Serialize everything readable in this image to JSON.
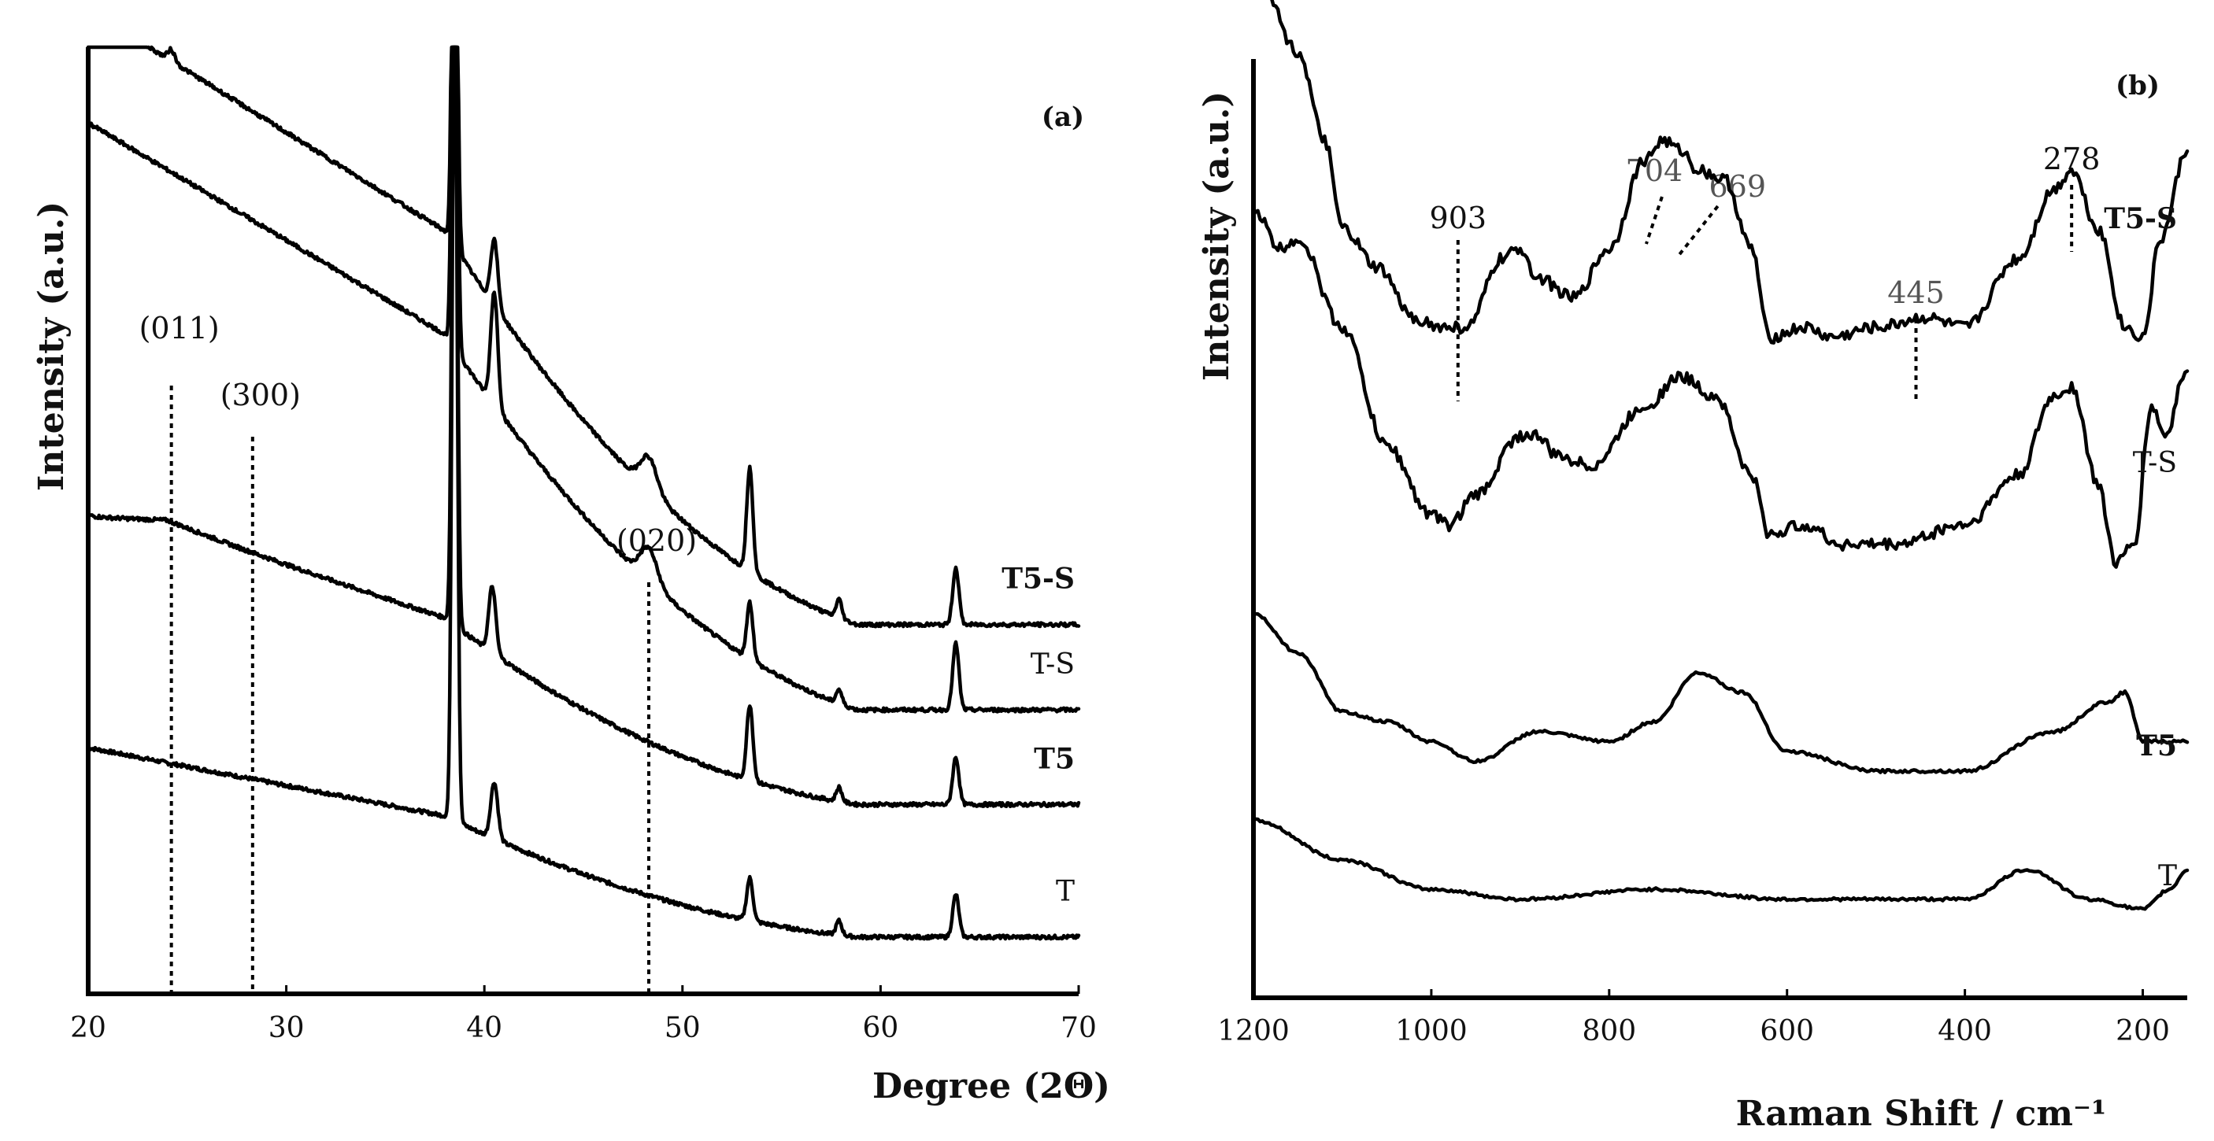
{
  "chart_data": [
    {
      "type": "line",
      "panel": "(a)",
      "xlabel": "Degree (2Θ)",
      "ylabel": "Intensity (a.u.)",
      "xlim": [
        20,
        70
      ],
      "xticks": [
        "20",
        "30",
        "40",
        "50",
        "60",
        "70"
      ],
      "yticks_shown": false,
      "series": [
        {
          "name": "T",
          "bold": false,
          "baseline": 0.06,
          "bg_start": 0.2,
          "bg_end": 0.03,
          "bg_shape": "linear",
          "peaks": [
            [
              38.5,
              0.88,
              0.18
            ],
            [
              40.5,
              0.06,
              0.25
            ],
            [
              53.4,
              0.045,
              0.22
            ],
            [
              57.9,
              0.015,
              0.2
            ],
            [
              63.8,
              0.045,
              0.22
            ]
          ],
          "humps": []
        },
        {
          "name": "T5",
          "bold": true,
          "baseline": 0.2,
          "bg_start": 0.34,
          "bg_end": 0.0,
          "bg_shape": "curved",
          "peaks": [
            [
              38.5,
              0.75,
              0.18
            ],
            [
              40.4,
              0.07,
              0.25
            ],
            [
              53.4,
              0.08,
              0.22
            ],
            [
              57.9,
              0.015,
              0.2
            ],
            [
              63.8,
              0.05,
              0.22
            ]
          ],
          "humps": []
        },
        {
          "name": "T-S",
          "bold": false,
          "baseline": 0.3,
          "bg_start": 0.62,
          "bg_end": 0.0,
          "bg_shape": "linear",
          "peaks": [
            [
              38.5,
              0.62,
              0.18
            ],
            [
              40.5,
              0.12,
              0.25
            ],
            [
              53.4,
              0.06,
              0.22
            ],
            [
              57.9,
              0.015,
              0.2
            ],
            [
              63.8,
              0.07,
              0.22
            ]
          ],
          "humps": [
            [
              48.3,
              0.035,
              0.6
            ]
          ]
        },
        {
          "name": "T5-S",
          "bold": true,
          "baseline": 0.39,
          "bg_start": 0.65,
          "bg_end": 0.0,
          "bg_shape": "linear",
          "peaks": [
            [
              38.5,
              0.55,
              0.18
            ],
            [
              40.5,
              0.07,
              0.25
            ],
            [
              53.4,
              0.11,
              0.22
            ],
            [
              57.9,
              0.02,
              0.2
            ],
            [
              63.8,
              0.06,
              0.22
            ]
          ],
          "humps": [
            [
              48.3,
              0.035,
              0.6
            ],
            [
              24.2,
              0.012,
              0.25
            ]
          ]
        }
      ],
      "annotations": [
        {
          "text": "(011)",
          "x": 24.2
        },
        {
          "text": "(300)",
          "x": 28.3
        },
        {
          "text": "(020)",
          "x": 48.3
        }
      ]
    },
    {
      "type": "line",
      "panel": "(b)",
      "xlabel": "Raman Shift / cm⁻¹",
      "ylabel": "Intensity (a.u.)",
      "xlim": [
        1200,
        150
      ],
      "xticks": [
        "1200",
        "1000",
        "800",
        "600",
        "400",
        "200"
      ],
      "yticks_shown": false,
      "series": [
        {
          "name": "T",
          "bold": false,
          "offset": 0.06,
          "points": [
            [
              1200,
              0.12
            ],
            [
              1100,
              0.08
            ],
            [
              1000,
              0.05
            ],
            [
              900,
              0.04
            ],
            [
              750,
              0.05
            ],
            [
              600,
              0.04
            ],
            [
              400,
              0.04
            ],
            [
              330,
              0.07
            ],
            [
              260,
              0.04
            ],
            [
              200,
              0.03
            ],
            [
              170,
              0.05
            ],
            [
              150,
              0.07
            ]
          ]
        },
        {
          "name": "T5",
          "bold": true,
          "offset": 0.22,
          "points": [
            [
              1200,
              0.17
            ],
            [
              1150,
              0.13
            ],
            [
              1100,
              0.07
            ],
            [
              1050,
              0.06
            ],
            [
              1000,
              0.04
            ],
            [
              950,
              0.02
            ],
            [
              880,
              0.05
            ],
            [
              800,
              0.04
            ],
            [
              750,
              0.06
            ],
            [
              700,
              0.11
            ],
            [
              650,
              0.09
            ],
            [
              600,
              0.03
            ],
            [
              500,
              0.01
            ],
            [
              400,
              0.01
            ],
            [
              300,
              0.05
            ],
            [
              240,
              0.08
            ],
            [
              220,
              0.09
            ],
            [
              200,
              0.04
            ],
            [
              150,
              0.04
            ]
          ]
        },
        {
          "name": "T-S",
          "bold": false,
          "offset": 0.46,
          "points": [
            [
              1200,
              0.34
            ],
            [
              1170,
              0.3
            ],
            [
              1150,
              0.31
            ],
            [
              1100,
              0.22
            ],
            [
              1050,
              0.1
            ],
            [
              1000,
              0.03
            ],
            [
              980,
              0.02
            ],
            [
              950,
              0.05
            ],
            [
              900,
              0.11
            ],
            [
              880,
              0.11
            ],
            [
              860,
              0.09
            ],
            [
              820,
              0.08
            ],
            [
              760,
              0.14
            ],
            [
              720,
              0.17
            ],
            [
              680,
              0.15
            ],
            [
              640,
              0.07
            ],
            [
              620,
              0.01
            ],
            [
              580,
              0.02
            ],
            [
              540,
              0.0
            ],
            [
              480,
              0.0
            ],
            [
              400,
              0.02
            ],
            [
              340,
              0.07
            ],
            [
              300,
              0.15
            ],
            [
              280,
              0.16
            ],
            [
              250,
              0.06
            ],
            [
              230,
              -0.02
            ],
            [
              210,
              0.0
            ],
            [
              190,
              0.14
            ],
            [
              175,
              0.11
            ],
            [
              150,
              0.18
            ]
          ]
        },
        {
          "name": "T5-S",
          "bold": true,
          "offset": 0.68,
          "points": [
            [
              1200,
              0.37
            ],
            [
              1150,
              0.28
            ],
            [
              1120,
              0.19
            ],
            [
              1100,
              0.1
            ],
            [
              1060,
              0.06
            ],
            [
              1020,
              0.01
            ],
            [
              990,
              0.0
            ],
            [
              960,
              0.0
            ],
            [
              920,
              0.07
            ],
            [
              900,
              0.08
            ],
            [
              880,
              0.05
            ],
            [
              840,
              0.03
            ],
            [
              800,
              0.08
            ],
            [
              760,
              0.17
            ],
            [
              740,
              0.19
            ],
            [
              720,
              0.18
            ],
            [
              700,
              0.16
            ],
            [
              670,
              0.15
            ],
            [
              640,
              0.08
            ],
            [
              620,
              -0.01
            ],
            [
              580,
              -0.0
            ],
            [
              550,
              -0.01
            ],
            [
              500,
              0.0
            ],
            [
              445,
              0.01
            ],
            [
              400,
              -0.0
            ],
            [
              340,
              0.07
            ],
            [
              300,
              0.14
            ],
            [
              280,
              0.16
            ],
            [
              250,
              0.1
            ],
            [
              220,
              0.0
            ],
            [
              200,
              -0.01
            ],
            [
              180,
              0.09
            ],
            [
              150,
              0.18
            ]
          ]
        }
      ],
      "annotations": [
        {
          "text": "903",
          "x": 970,
          "grey": false
        },
        {
          "text": "704",
          "x": 745,
          "grey": true
        },
        {
          "text": "669",
          "x": 700,
          "grey": true
        },
        {
          "text": "445",
          "x": 455,
          "grey": true
        },
        {
          "text": "278",
          "x": 280,
          "grey": false
        }
      ]
    }
  ]
}
